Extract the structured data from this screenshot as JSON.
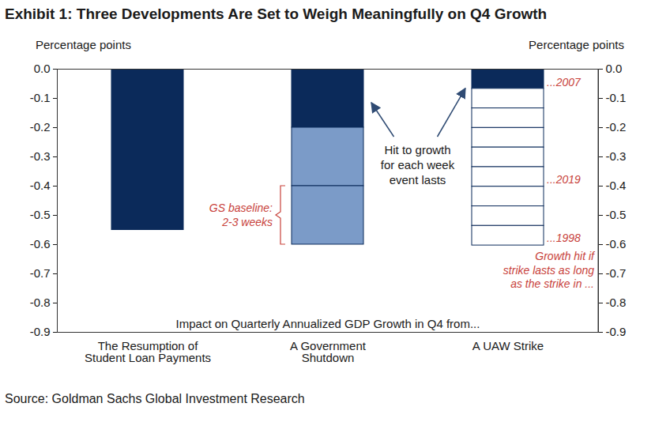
{
  "chart_data": {
    "type": "bar",
    "stacked": true,
    "title": "Exhibit 1: Three Developments Are Set to Weigh Meaningfully on Q4 Growth",
    "source": "Source: Goldman Sachs Global Investment Research",
    "ylabel": "Percentage points",
    "y2label": "Percentage points",
    "categories": [
      "The Resumption of\nStudent Loan Payments",
      "A Government\nShutdown",
      "A UAW Strike"
    ],
    "values": [
      [
        -0.55
      ],
      [
        -0.2,
        -0.2,
        -0.2
      ],
      [
        -0.067,
        -0.067,
        -0.067,
        -0.067,
        -0.067,
        -0.067,
        -0.067,
        -0.067,
        -0.067
      ]
    ],
    "colors": [
      [
        "#0b2a5a"
      ],
      [
        "#0b2a5a",
        "#7b9bc8",
        "#7b9bc8"
      ],
      [
        "#0b2a5a",
        "#ffffff",
        "#ffffff",
        "#ffffff",
        "#ffffff",
        "#ffffff",
        "#ffffff",
        "#ffffff",
        "#ffffff"
      ]
    ],
    "ylim": [
      -0.9,
      0
    ],
    "yticks": [
      {
        "value": 0,
        "label": "0.0"
      },
      -0.1,
      -0.2,
      -0.3,
      -0.4,
      -0.5,
      -0.6,
      -0.7,
      -0.8,
      -0.9
    ],
    "y2lim": [
      -0.9,
      0
    ],
    "y2ticks": [
      {
        "value": 0,
        "label": "0.0"
      },
      -0.1,
      -0.2,
      -0.3,
      -0.4,
      -0.5,
      -0.6,
      -0.7,
      -0.8,
      -0.9
    ],
    "annotations": {
      "axis_note": "Impact on Quarterly Annualized GDP Growth in Q4 from...",
      "weekly_hit": {
        "text": "Hit to growth\nfor each week\nevent lasts",
        "categories": [
          "A Government\nShutdown",
          "A UAW Strike"
        ]
      },
      "baseline": {
        "category": "A Government\nShutdown",
        "text": "GS baseline:\n2-3 weeks",
        "weeks": [
          2,
          3
        ]
      },
      "strike": {
        "category": "A UAW Strike",
        "note": "Growth hit if\nstrike lasts as long\nas the strike in ...",
        "lengths": [
          {
            "label": "...2007",
            "value": -0.067
          },
          {
            "label": "...2019",
            "value": -0.4
          },
          {
            "label": "...1998",
            "value": -0.6
          }
        ]
      }
    }
  }
}
